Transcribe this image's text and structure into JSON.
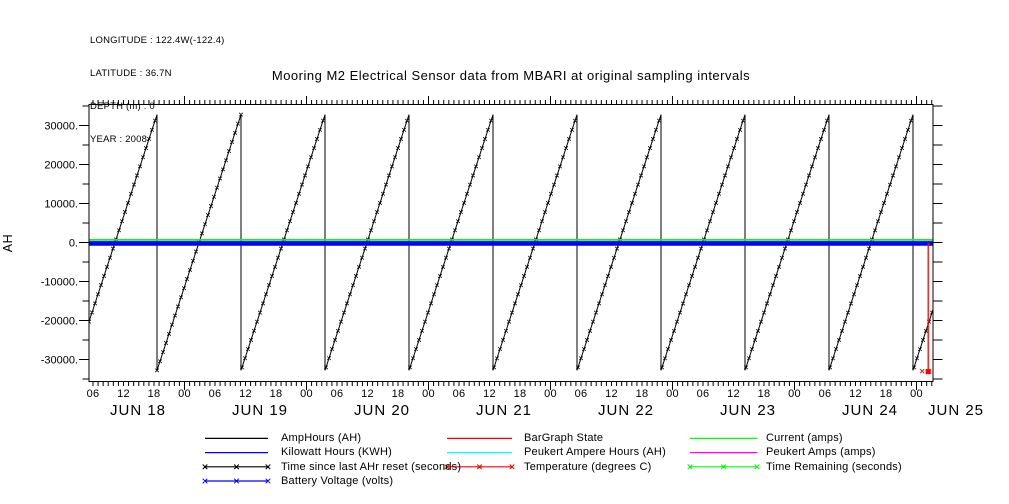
{
  "site_info": {
    "lines": [
      "LONGITUDE : 122.4W(-122.4)",
      "LATITUDE : 36.7N",
      "DEPTH (m) : 0",
      "YEAR : 2008"
    ]
  },
  "chart_data": {
    "type": "line",
    "title": "Mooring M2 Electrical Sensor data from MBARI at original sampling intervals",
    "ylabel": "AH",
    "ylim": [
      -35600,
      35300
    ],
    "ytick_major_step": 10000,
    "ytick_minor_step": 5000,
    "ytick_labels": [
      "30000.",
      "20000.",
      "10000.",
      "0.",
      "-10000.",
      "-20000.",
      "-30000."
    ],
    "grid": false,
    "x_axis": {
      "units": "hours since JUN 18 2008 00:00",
      "start_hour": 5.2,
      "end_hour": 171.25,
      "hour_tick_step": 1,
      "hour_label_step": 6,
      "hour_label_cycle": [
        "06",
        "12",
        "18",
        "00"
      ],
      "day_labels": [
        "JUN 18",
        "JUN 19",
        "JUN 20",
        "JUN 21",
        "JUN 22",
        "JUN 23",
        "JUN 24",
        "JUN 25"
      ]
    },
    "series": [
      {
        "name": "AmpHours (AH)",
        "color": "#000000",
        "markers": false,
        "pattern": "flat",
        "value": 0,
        "note": "hidden under Battery Voltage line"
      },
      {
        "name": "Kilowatt Hours (KWH)",
        "color": "#0000ff",
        "markers": false,
        "pattern": "flat",
        "value": 0,
        "note": "hidden under Battery Voltage line"
      },
      {
        "name": "Time since last AHr reset (seconds)",
        "color": "#000000",
        "markers": true,
        "pattern": "sawtooth",
        "sawtooth": {
          "min": -32800,
          "max": 32800,
          "first_peak_hour": 18.59,
          "period_hours": 16.525,
          "n_peaks": 10
        }
      },
      {
        "name": "Battery Voltage (volts)",
        "color": "#0000ff",
        "markers": true,
        "pattern": "flat",
        "value": 0,
        "thick": true
      },
      {
        "name": "BarGraph State",
        "color": "#ff0000",
        "markers": false,
        "pattern": "vertical-drop",
        "drop": {
          "hour": 170.3,
          "from": 0,
          "to": -33000
        }
      },
      {
        "name": "Peukert Ampere Hours (AH)",
        "color": "#00ffff",
        "markers": false,
        "pattern": "flat",
        "value": 0,
        "note": "hidden under Battery Voltage line"
      },
      {
        "name": "Temperature (degrees C)",
        "color": "#ff0000",
        "markers": true,
        "pattern": "flat",
        "value": 0,
        "note": "overlaps BarGraph drop at right edge"
      },
      {
        "name": "Current (amps)",
        "color": "#00ff00",
        "markers": false,
        "pattern": "flat",
        "value": 0
      },
      {
        "name": "Peukert Amps (amps)",
        "color": "#ff00ff",
        "markers": false,
        "pattern": "flat",
        "value": 0,
        "note": "hidden under Battery Voltage line"
      },
      {
        "name": "Time Remaining (seconds)",
        "color": "#00ff00",
        "markers": true,
        "pattern": "flat",
        "value": 0,
        "note": "hidden under Current line"
      }
    ],
    "legend_columns": [
      [
        0,
        1,
        2,
        3
      ],
      [
        4,
        5,
        6
      ],
      [
        7,
        8,
        9
      ]
    ]
  }
}
